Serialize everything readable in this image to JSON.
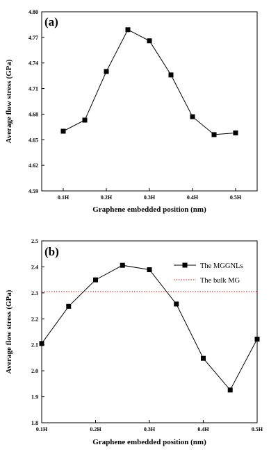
{
  "chart_data": [
    {
      "type": "line",
      "panel_label": "(a)",
      "xlabel": "Graphene embedded position (nm)",
      "ylabel": "Average flow stress (GPa)",
      "x_ticks": [
        "0.1H",
        "0.2H",
        "0.3H",
        "0.4H",
        "0.5H"
      ],
      "x_tick_values": [
        0.1,
        0.2,
        0.3,
        0.4,
        0.5
      ],
      "xlim": [
        0.05,
        0.55
      ],
      "ylim": [
        4.59,
        4.8
      ],
      "y_ticks": [
        4.59,
        4.62,
        4.65,
        4.68,
        4.71,
        4.74,
        4.77,
        4.8
      ],
      "y_tick_labels": [
        "4.59",
        "4.62",
        "4.65",
        "4.68",
        "4.71",
        "4.74",
        "4.77",
        "4.80"
      ],
      "x": [
        0.1,
        0.15,
        0.2,
        0.25,
        0.3,
        0.35,
        0.4,
        0.45,
        0.5
      ],
      "series": [
        {
          "values": [
            4.66,
            4.673,
            4.73,
            4.779,
            4.766,
            4.726,
            4.677,
            4.656,
            4.658
          ]
        }
      ],
      "grid": false,
      "legend": "none"
    },
    {
      "type": "line",
      "panel_label": "(b)",
      "xlabel": "Graphene embedded position (nm)",
      "ylabel": "Average flow stress (GPa)",
      "x_ticks": [
        "0.1H",
        "0.2H",
        "0.3H",
        "0.4H",
        "0.5H"
      ],
      "x_tick_values": [
        0.1,
        0.2,
        0.3,
        0.4,
        0.5
      ],
      "xlim": [
        0.1,
        0.5
      ],
      "ylim": [
        1.8,
        2.5
      ],
      "y_ticks": [
        1.8,
        1.9,
        2.0,
        2.1,
        2.2,
        2.3,
        2.4,
        2.5
      ],
      "y_tick_labels": [
        "1.8",
        "1.9",
        "2.0",
        "2.1",
        "2.2",
        "2.3",
        "2.4",
        "2.5"
      ],
      "x": [
        0.1,
        0.15,
        0.2,
        0.25,
        0.3,
        0.35,
        0.4,
        0.45,
        0.5
      ],
      "series": [
        {
          "name": "The MGGNLs",
          "values": [
            2.105,
            2.248,
            2.35,
            2.406,
            2.389,
            2.257,
            2.048,
            1.926,
            2.122
          ]
        }
      ],
      "reference_lines": [
        {
          "name": "The bulk MG",
          "value": 2.305,
          "color": "#e03a2e"
        }
      ],
      "grid": false,
      "legend": "top-right"
    }
  ]
}
